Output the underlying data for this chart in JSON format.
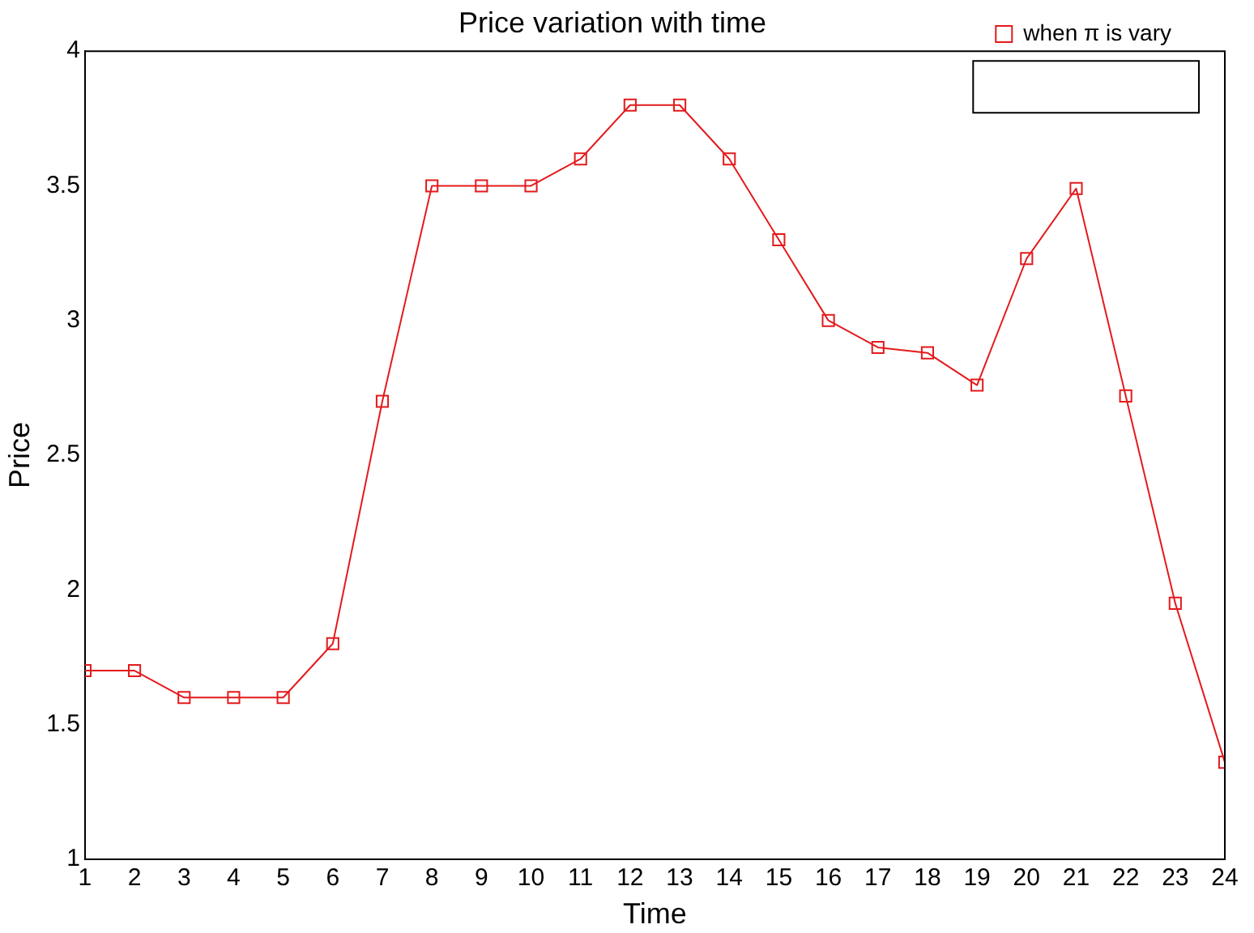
{
  "chart_data": {
    "type": "line",
    "title": "Price variation with time",
    "xlabel": "Time",
    "ylabel": "Price",
    "x": [
      1,
      2,
      3,
      4,
      5,
      6,
      7,
      8,
      9,
      10,
      11,
      12,
      13,
      14,
      15,
      16,
      17,
      18,
      19,
      20,
      21,
      22,
      23,
      24
    ],
    "series": [
      {
        "name": "when π is vary",
        "color": "#e41a1c",
        "values": [
          1.7,
          1.7,
          1.6,
          1.6,
          1.6,
          1.8,
          2.7,
          3.5,
          3.5,
          3.5,
          3.6,
          3.8,
          3.8,
          3.6,
          3.3,
          3.0,
          2.9,
          2.88,
          2.76,
          3.23,
          3.49,
          2.72,
          1.95,
          1.36
        ]
      }
    ],
    "xlim": [
      1,
      24
    ],
    "xticks": [
      1,
      2,
      3,
      4,
      5,
      6,
      7,
      8,
      9,
      10,
      11,
      12,
      13,
      14,
      15,
      16,
      17,
      18,
      19,
      20,
      21,
      22,
      23,
      24
    ],
    "ylim": [
      1,
      4
    ],
    "yticks": [
      1,
      1.5,
      2,
      2.5,
      3,
      3.5,
      4
    ],
    "grid": false,
    "legend": "top right",
    "marker": "square",
    "line_style": "solid"
  }
}
